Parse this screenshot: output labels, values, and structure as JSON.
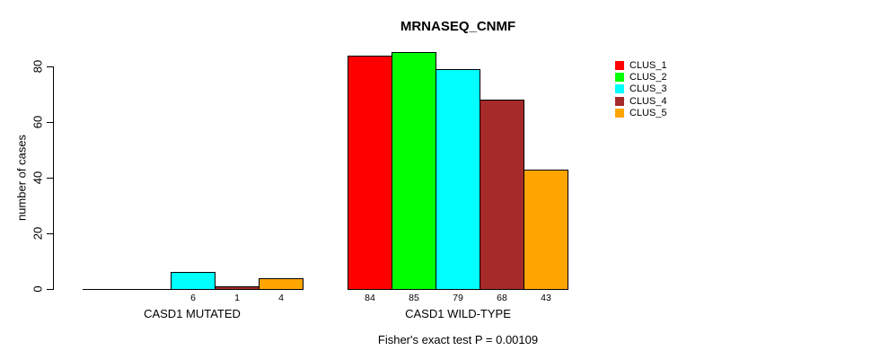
{
  "chart_data": {
    "type": "bar",
    "title": "MRNASEQ_CNMF",
    "ylabel": "number of cases",
    "xlabel": "",
    "note": "Fisher's exact test P = 0.00109",
    "categories": [
      "CASD1 MUTATED",
      "CASD1 WILD-TYPE"
    ],
    "series": [
      {
        "name": "CLUS_1",
        "color": "#FF0000",
        "values": [
          0,
          84
        ]
      },
      {
        "name": "CLUS_2",
        "color": "#00FF00",
        "values": [
          0,
          85
        ]
      },
      {
        "name": "CLUS_3",
        "color": "#00FFFF",
        "values": [
          6,
          79
        ]
      },
      {
        "name": "CLUS_4",
        "color": "#A52A2A",
        "values": [
          1,
          68
        ]
      },
      {
        "name": "CLUS_5",
        "color": "#FFA500",
        "values": [
          4,
          43
        ]
      }
    ],
    "bar_value_labels_visible": [
      [
        "6",
        "1",
        "4"
      ],
      [
        "84",
        "85",
        "79",
        "68",
        "43"
      ]
    ],
    "yticks": [
      0,
      20,
      40,
      60,
      80
    ],
    "ylim": [
      0,
      85
    ],
    "grid": false,
    "legend_position": "right",
    "background_color": "#FFFFFF",
    "axis_color": "#000000"
  }
}
